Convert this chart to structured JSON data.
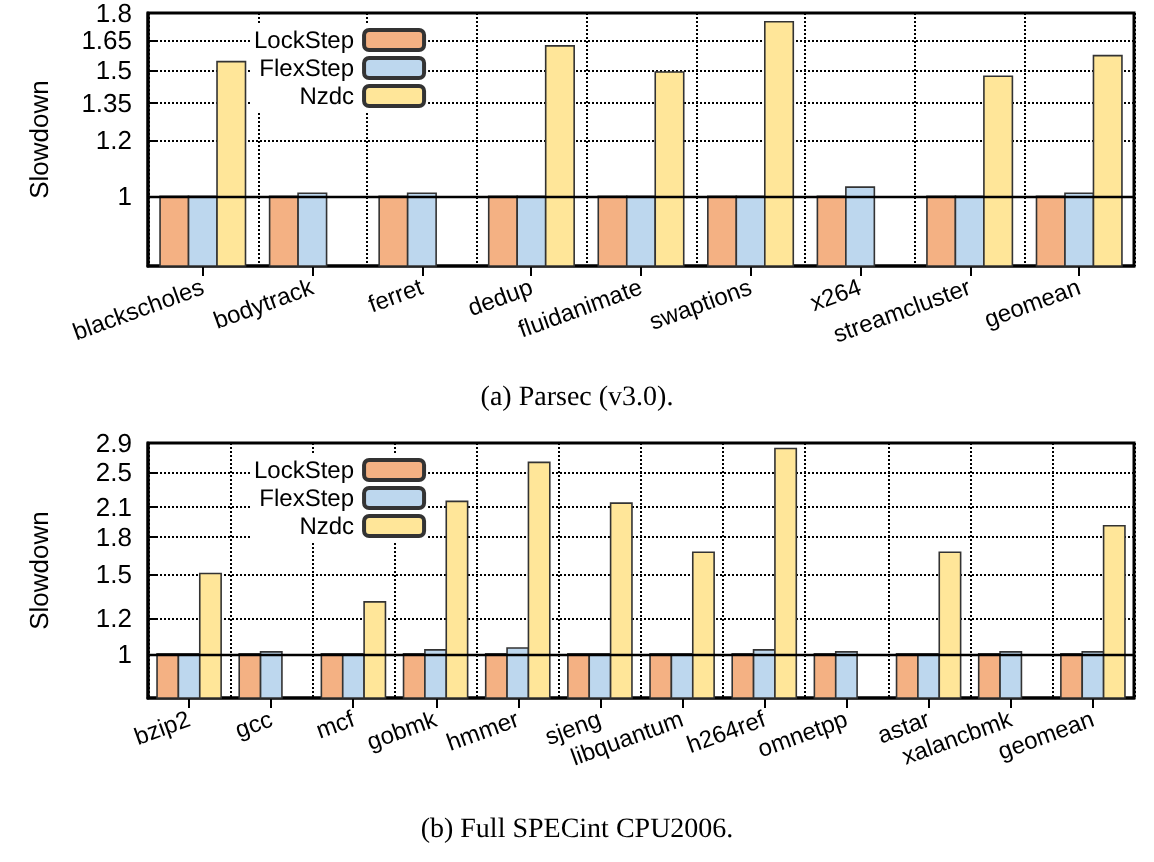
{
  "chart_data": [
    {
      "type": "bar",
      "title": "(a) Parsec (v3.0).",
      "ylabel": "Slowdown",
      "log": true,
      "grid": true,
      "legend": "top left",
      "categories": [
        "blackscholes",
        "bodytrack",
        "ferret",
        "dedup",
        "fluidanimate",
        "swaptions",
        "x264",
        "streamcluster",
        "geomean"
      ],
      "ylim": [
        0.8,
        1.8
      ],
      "yticks": [
        1,
        1.2,
        1.35,
        1.5,
        1.65,
        1.8
      ],
      "ref_lines": [
        {
          "axis": "y",
          "value": 1,
          "color": "#000000",
          "line_style": "solid"
        }
      ],
      "series": [
        {
          "name": "LockStep",
          "color": "#f4b183",
          "values": [
            1,
            1,
            1,
            1,
            1,
            1,
            1,
            1,
            1
          ]
        },
        {
          "name": "FlexStep",
          "color": "#bdd7ee",
          "values": [
            1,
            1.01,
            1.01,
            1,
            1,
            1,
            1.03,
            1,
            1.01
          ]
        },
        {
          "name": "Nzdc",
          "color": "#ffe699",
          "values": [
            1.54,
            null,
            null,
            1.62,
            1.49,
            1.75,
            null,
            1.47,
            1.57
          ]
        }
      ]
    },
    {
      "type": "bar",
      "title": "(b) Full SPECint CPU2006.",
      "ylabel": "Slowdown",
      "log": true,
      "grid": true,
      "legend": "top left",
      "categories": [
        "bzip2",
        "gcc",
        "mcf",
        "gobmk",
        "hmmer",
        "sjeng",
        "libquantum",
        "h264ref",
        "omnetpp",
        "astar",
        "xalancbmk",
        "geomean"
      ],
      "ylim": [
        0.8,
        2.9
      ],
      "yticks": [
        1,
        1.2,
        1.5,
        1.8,
        2.1,
        2.5,
        2.9
      ],
      "ref_lines": [
        {
          "axis": "y",
          "value": 1,
          "color": "#000000",
          "line_style": "solid"
        }
      ],
      "series": [
        {
          "name": "LockStep",
          "color": "#f4b183",
          "values": [
            1,
            1,
            1,
            1,
            1,
            1,
            1,
            1,
            1,
            1,
            1,
            1
          ]
        },
        {
          "name": "FlexStep",
          "color": "#bdd7ee",
          "values": [
            1,
            1.01,
            1,
            1.02,
            1.03,
            1,
            1,
            1.02,
            1.01,
            1,
            1.01,
            1.01
          ]
        },
        {
          "name": "Nzdc",
          "color": "#ffe699",
          "values": [
            1.5,
            null,
            1.3,
            2.16,
            2.63,
            2.14,
            1.67,
            2.82,
            null,
            1.67,
            null,
            1.91
          ]
        }
      ]
    }
  ]
}
